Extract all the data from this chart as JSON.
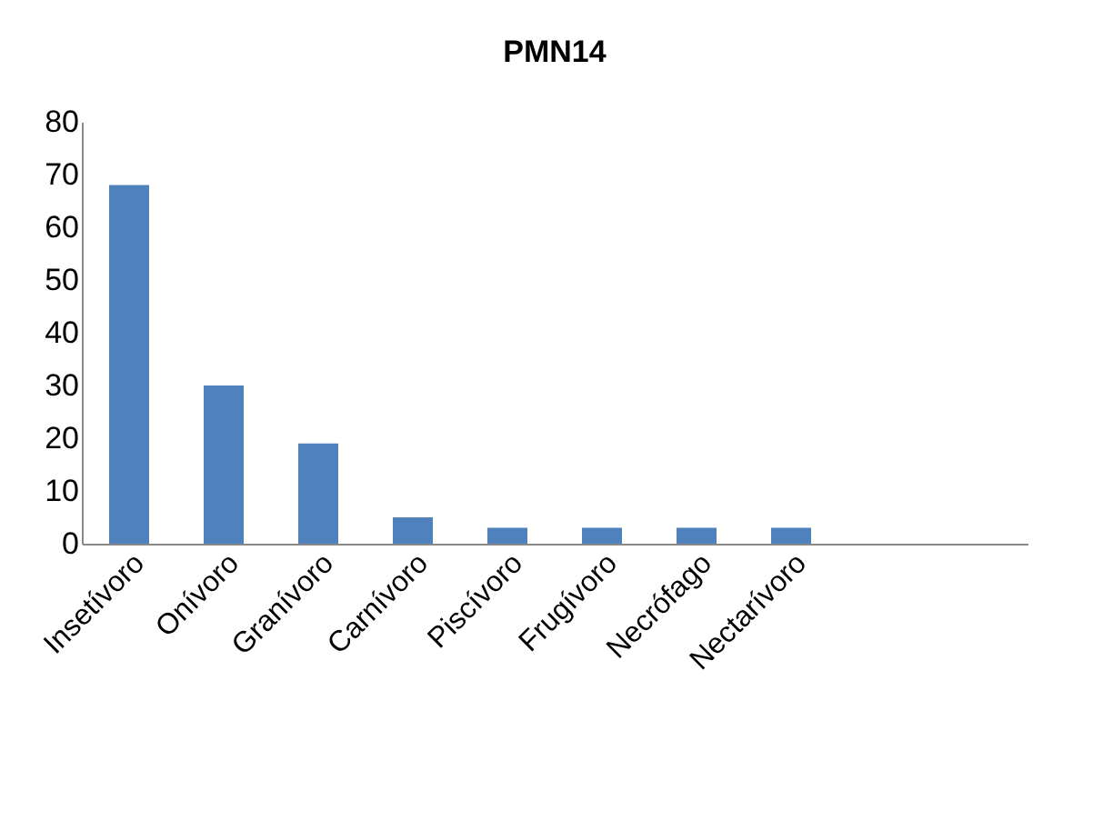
{
  "chart_data": {
    "type": "bar",
    "title": "PMN14",
    "categories": [
      "Insetívoro",
      "Onívoro",
      "Granívoro",
      "Carnívoro",
      "Piscívoro",
      "Frugívoro",
      "Necrófago",
      "Nectarívoro",
      null,
      null
    ],
    "values": [
      68,
      30,
      19,
      5,
      3,
      3,
      3,
      3,
      null,
      null
    ],
    "color": "#4f81bd",
    "ylim": [
      0,
      80
    ],
    "yticks": [
      0,
      10,
      20,
      30,
      40,
      50,
      60,
      70,
      80
    ],
    "grid": false
  }
}
